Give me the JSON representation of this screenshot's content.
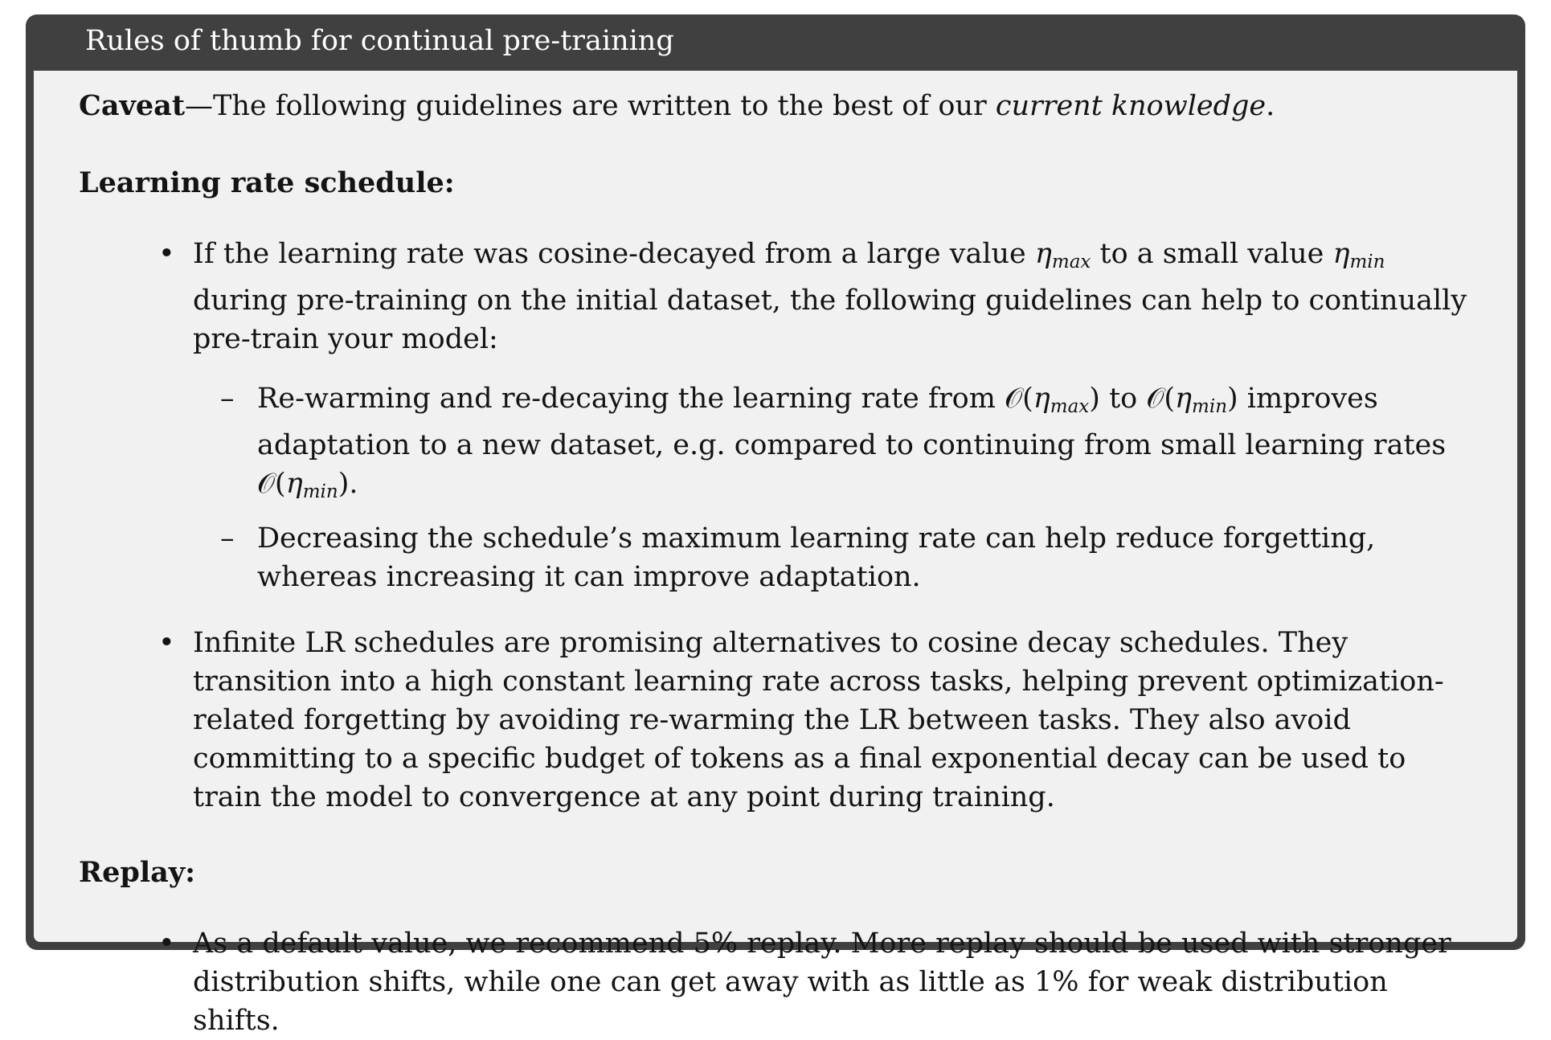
{
  "title": "Rules of thumb for continual pre-training",
  "caveat": {
    "lead": "Caveat",
    "text": "—The following guidelines are written to the best of our ",
    "emphasis": "current knowledge",
    "end": "."
  },
  "sections": {
    "lr": {
      "heading": "Learning rate schedule:",
      "bullet1": {
        "t1": "If the learning rate was cosine-decayed from a large value ",
        "eta": "η",
        "max": "max",
        "t2": " to a small value ",
        "min": "min",
        "t3": " during pre-training on the initial dataset, the following guidelines can help to continually pre-train your model:",
        "dash1": {
          "t1": "Re-warming and re-decaying the learning rate from ",
          "O": "𝒪(",
          "close": ")",
          "t2": " to ",
          "t3": " improves adaptation to a new dataset, e.g. compared to continuing from small learning rates ",
          "end": "."
        },
        "dash2": "Decreasing the schedule’s maximum learning rate can help reduce forgetting, whereas increasing it can improve adaptation."
      },
      "bullet2": "Infinite LR schedules are promising alternatives to cosine decay schedules. They transition into a high constant learning rate across tasks, helping prevent optimization-related forgetting by avoiding re-warming the LR between tasks. They also avoid committing to a specific budget of tokens as a final exponential decay can be used to train the model to convergence at any point during training."
    },
    "replay": {
      "heading": "Replay:",
      "bullet1": "As a default value, we recommend 5% replay. More replay should be used with stronger distribution shifts, while one can get away with as little as 1% for weak distribution shifts."
    }
  },
  "glyphs": {
    "bullet": "•",
    "dash": "–"
  }
}
